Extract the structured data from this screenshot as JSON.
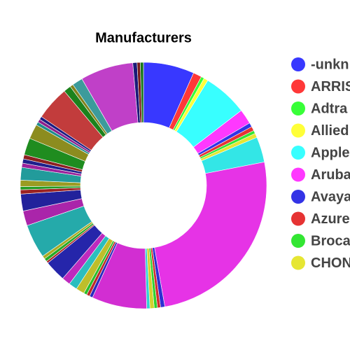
{
  "chart_data": {
    "type": "donut",
    "title": "Manufacturers",
    "categories": [
      "-unkn",
      "ARRIS",
      "Adtra",
      "Allied",
      "Apple",
      "Aruba",
      "Avaya",
      "Azure",
      "Broca",
      "CHON",
      null,
      null,
      null,
      null,
      null,
      null,
      null,
      null,
      null,
      null,
      null,
      null,
      null,
      null,
      null,
      null,
      null,
      null,
      null,
      null,
      null,
      null,
      null,
      null,
      null,
      null,
      null,
      null,
      null,
      null,
      null,
      null,
      null,
      null,
      null,
      null,
      null,
      null,
      null,
      null,
      null
    ],
    "values": [
      24,
      4,
      1.5,
      2,
      21,
      7,
      2,
      2,
      1.5,
      2,
      12,
      91,
      2,
      1.5,
      1.5,
      2,
      1.5,
      26,
      1.5,
      1.5,
      1.5,
      4,
      4,
      4,
      10,
      1,
      1.5,
      1.5,
      16,
      7,
      8,
      2,
      1.5,
      3,
      6,
      2,
      2,
      2,
      8,
      7,
      1.5,
      1.5,
      1.5,
      16,
      3.5,
      1.5,
      5,
      25,
      2,
      1.5,
      1.5
    ],
    "colors": [
      "#3838ff",
      "#ff3838",
      "#38ff38",
      "#ffff38",
      "#38ffff",
      "#ff38ff",
      "#3333e6",
      "#e63333",
      "#33e633",
      "#e6e633",
      "#33e6e6",
      "#e633e6",
      "#2e2ed2",
      "#d22e2e",
      "#2ed22e",
      "#d2d22e",
      "#2ed2d2",
      "#d22ed2",
      "#2a2abe",
      "#be2a2a",
      "#2abe2a",
      "#bebe2a",
      "#2abebe",
      "#be2abe",
      "#2525aa",
      "#aa2525",
      "#25aa25",
      "#aaaa25",
      "#25aaaa",
      "#aa25aa",
      "#22229b",
      "#9b2222",
      "#229b22",
      "#9b9b22",
      "#229b9b",
      "#9b229b",
      "#1f1f8c",
      "#8c1f1f",
      "#1f8c1f",
      "#8c8c1f",
      "#1f8c8c",
      "#8c1f8c",
      "#1c1c82",
      "#c23c3c",
      "#1c821c",
      "#82821c",
      "#3c9b9b",
      "#c040c8",
      "#1a1a78",
      "#781a1a",
      "#1a781a"
    ],
    "legend": "right"
  }
}
